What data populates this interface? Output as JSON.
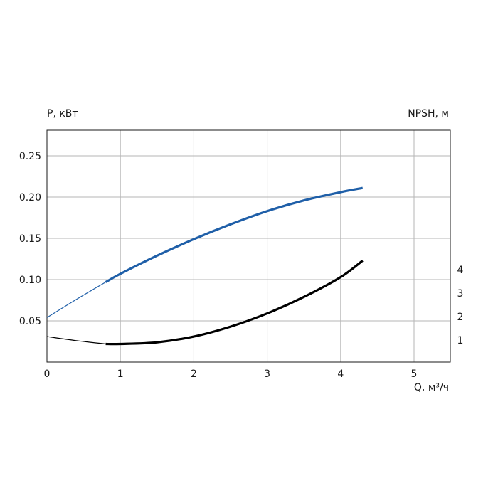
{
  "chart_data": {
    "type": "line",
    "left_axis": {
      "label": "P, кВт",
      "ylim": [
        0,
        0.28
      ],
      "ticks": [
        0.05,
        0.1,
        0.15,
        0.2,
        0.25
      ],
      "tick_labels": [
        "0.05",
        "0.10",
        "0.15",
        "0.20",
        "0.25"
      ]
    },
    "right_axis": {
      "label": "NPSH, м",
      "ticks": [
        1,
        2,
        3,
        4
      ],
      "tick_labels": [
        "1",
        "2",
        "3",
        "4"
      ]
    },
    "x_axis": {
      "label": "Q, м³/ч",
      "xlim": [
        0,
        5.5
      ],
      "ticks": [
        0,
        1,
        2,
        3,
        4,
        5
      ],
      "tick_labels": [
        "0",
        "1",
        "2",
        "3",
        "4",
        "5"
      ]
    },
    "grid": true,
    "series": [
      {
        "color": "#1f5fa8",
        "axis": "left",
        "x": [
          0,
          0.4,
          0.8,
          1.0,
          1.5,
          2.0,
          2.5,
          3.0,
          3.5,
          4.0,
          4.3
        ],
        "y": [
          0.054,
          0.076,
          0.097,
          0.107,
          0.129,
          0.149,
          0.167,
          0.183,
          0.196,
          0.206,
          0.211
        ],
        "solid_from_x": 0.8
      },
      {
        "color": "#000000",
        "axis": "left",
        "x": [
          0,
          0.4,
          0.8,
          1.0,
          1.5,
          2.0,
          2.5,
          3.0,
          3.5,
          4.0,
          4.3
        ],
        "y": [
          0.031,
          0.026,
          0.022,
          0.022,
          0.024,
          0.031,
          0.043,
          0.059,
          0.079,
          0.103,
          0.123
        ],
        "solid_from_x": 0.8
      }
    ]
  }
}
